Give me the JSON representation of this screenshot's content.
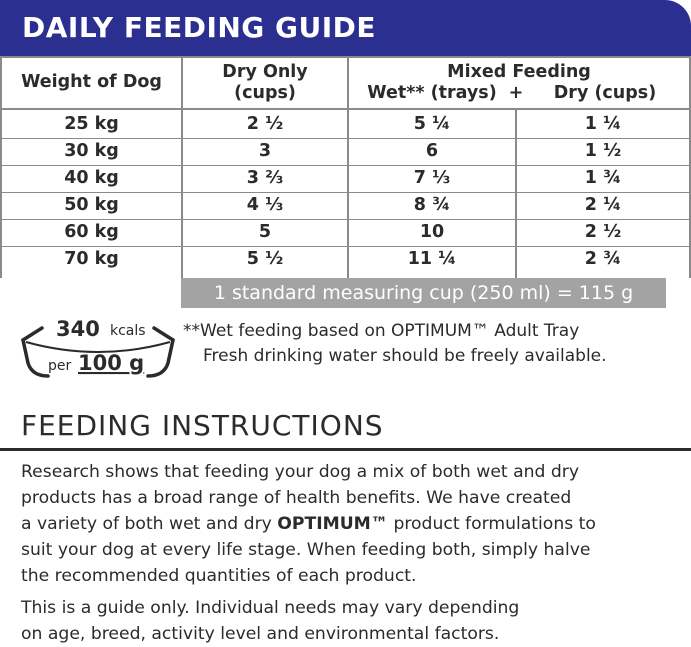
{
  "guide": {
    "title": "DAILY FEEDING GUIDE"
  },
  "table": {
    "header": {
      "weight": "Weight of Dog",
      "dry_only_line1": "Dry Only",
      "dry_only_line2": "(cups)",
      "mixed": "Mixed Feeding",
      "wet": "Wet** (trays)",
      "plus": "+",
      "dry": "Dry (cups)"
    },
    "rows": [
      {
        "weight": "25 kg",
        "dry_only": "2 ½",
        "wet": "5 ¼",
        "dry": "1 ¼"
      },
      {
        "weight": "30 kg",
        "dry_only": "3",
        "wet": "6",
        "dry": "1 ½"
      },
      {
        "weight": "40 kg",
        "dry_only": "3 ⅔",
        "wet": "7 ⅓",
        "dry": "1 ¾"
      },
      {
        "weight": "50 kg",
        "dry_only": "4 ⅓",
        "wet": "8 ¾",
        "dry": "2 ¼"
      },
      {
        "weight": "60 kg",
        "dry_only": "5",
        "wet": "10",
        "dry": "2 ½"
      },
      {
        "weight": "70 kg",
        "dry_only": "5 ½",
        "wet": "11 ¼",
        "dry": "2 ¾"
      }
    ],
    "cup_note": "1 standard measuring cup (250 ml) = 115 g"
  },
  "calories": {
    "value": "340",
    "unit": "kcals",
    "per": "per",
    "amount": "100 g"
  },
  "notes": {
    "wet_note": "**Wet feeding based on OPTIMUM™ Adult Tray",
    "water_note": "Fresh drinking water should be freely available."
  },
  "instructions": {
    "title": "FEEDING INSTRUCTIONS",
    "para1": {
      "line1": "Research shows that feeding your dog a mix of both wet and dry",
      "line2": "products has a broad range of health benefits. We have created",
      "line3_a": "a variety of both wet and dry ",
      "line3_brand": "OPTIMUM™",
      "line3_b": " product formulations to",
      "line4": "suit your dog at every life stage.  When feeding both, simply halve",
      "line5": "the recommended quantities of each product."
    },
    "para2": {
      "line1": "This is a guide only.  Individual needs may vary depending",
      "line2": "on age, breed, activity level and environmental factors."
    }
  },
  "colors": {
    "banner": "#2b2f8f",
    "text": "#2b2b2b",
    "grid": "#8a8a8a",
    "note_bar": "#a3a3a3"
  }
}
